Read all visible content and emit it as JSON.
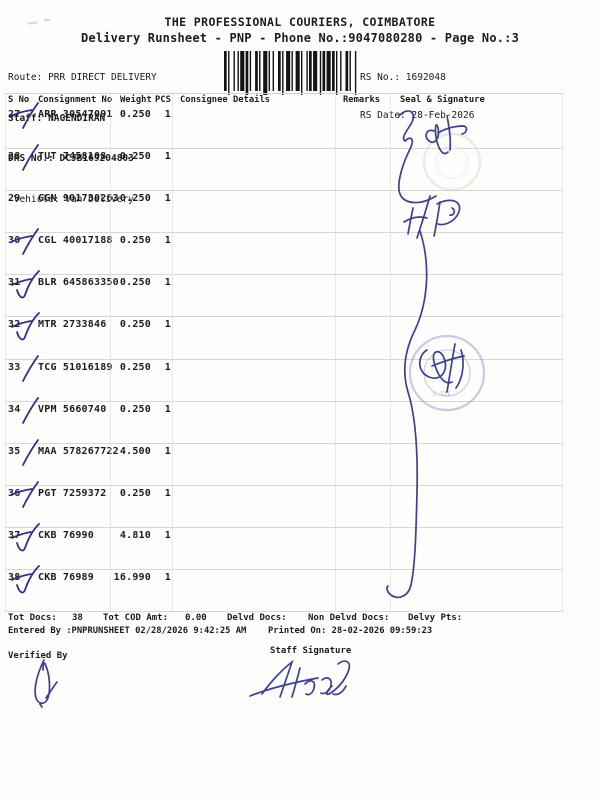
{
  "header": {
    "title": "THE PROFESSIONAL COURIERS, COIMBATORE",
    "subtitle": "Delivery Runsheet - PNP - Phone No.:9047080280 - Page No.:3",
    "route_label": "Route:",
    "route": "PRR DIRECT DELIVERY",
    "staff_label": "Staff:",
    "staff": "NAGENDIRAN",
    "drs_label": "DRS No.:",
    "drs": "DCJB169204803",
    "vehicle_label": "Vehicle:",
    "vehicle": "Van Delivery",
    "rs_no_label": "RS No.:",
    "rs_no": "1692048",
    "rs_date_label": "RS Date:",
    "rs_date": "28-Feb-2026"
  },
  "table": {
    "columns": [
      "S No",
      "Consignment No",
      "Weight",
      "PCS",
      "Consignee Details",
      "Remarks",
      "Seal & Signature"
    ],
    "rows": [
      {
        "sno": "27",
        "consignment": "ARR 30547091",
        "weight": "0.250",
        "pcs": "1",
        "tick": "slash-strike"
      },
      {
        "sno": "28",
        "consignment": "TUT 7458108",
        "weight": "0.250",
        "pcs": "1",
        "tick": "slash"
      },
      {
        "sno": "29",
        "consignment": "GGN 901730263",
        "weight": "0.250",
        "pcs": "1",
        "tick": null
      },
      {
        "sno": "30",
        "consignment": "CGL 40017188",
        "weight": "0.250",
        "pcs": "1",
        "tick": "slash-strike"
      },
      {
        "sno": "31",
        "consignment": "BLR 645863350",
        "weight": "0.250",
        "pcs": "1",
        "tick": "check"
      },
      {
        "sno": "32",
        "consignment": "MTR 2733846",
        "weight": "0.250",
        "pcs": "1",
        "tick": "check"
      },
      {
        "sno": "33",
        "consignment": "TCG 51016189",
        "weight": "0.250",
        "pcs": "1",
        "tick": "slash"
      },
      {
        "sno": "34",
        "consignment": "VPM 5660740",
        "weight": "0.250",
        "pcs": "1",
        "tick": "slash"
      },
      {
        "sno": "35",
        "consignment": "MAA 578267722",
        "weight": "4.500",
        "pcs": "1",
        "tick": "slash"
      },
      {
        "sno": "36",
        "consignment": "PGT 7259372",
        "weight": "0.250",
        "pcs": "1",
        "tick": "slash-strike"
      },
      {
        "sno": "37",
        "consignment": "CKB 76990",
        "weight": "4.810",
        "pcs": "1",
        "tick": "check"
      },
      {
        "sno": "38",
        "consignment": "CKB 76989",
        "weight": "16.990",
        "pcs": "1",
        "tick": "check"
      }
    ]
  },
  "footer": {
    "totals": {
      "tot_docs_label": "Tot Docs:",
      "tot_docs": "38",
      "tot_cod_label": "Tot COD Amt:",
      "tot_cod": "0.00",
      "delvd_label": "Delvd Docs:",
      "non_delvd_label": "Non Delvd Docs:",
      "delvy_pts_label": "Delvy Pts:"
    },
    "entered_by": "Entered By :PNPRUNSHEET 02/28/2026 9:42:25 AM",
    "printed_on": "Printed On: 28-02-2026 09:59:23",
    "verified_by_label": "Verified By",
    "staff_signature_label": "Staff Signature"
  },
  "colors": {
    "ink_blue": "#2e2f8e",
    "stamp_purple": "#a98fd0",
    "paper": "#fdfdfb",
    "grid_line": "#d8d8d3",
    "text": "#1c1c1c"
  }
}
